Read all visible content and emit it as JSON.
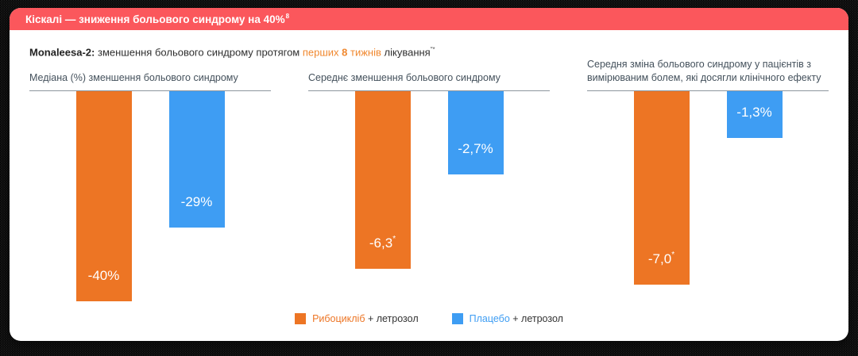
{
  "header": {
    "title": "Кіскалі — зниження больового синдрому на 40%",
    "superscript": "8"
  },
  "subtitle": {
    "prefix_bold": "Monaleesa-2:",
    "text_before": " зменшення больового синдрому протягом ",
    "highlight_pre": "перших ",
    "highlight_bold": "8",
    "highlight_post": " тижнів",
    "text_after": " лікування",
    "superscript": "″*"
  },
  "colors": {
    "header_bg": "#FB575C",
    "ribociclib_orange": "#ED7524",
    "placebo_blue": "#3E9DF3",
    "highlight_orange": "#F0882F",
    "panel_title_gray": "#44515C",
    "axis_gray": "#8C969E"
  },
  "panels": [
    {
      "title": "Медіана (%) зменшення больового синдрому",
      "bars": [
        {
          "series": "ribociclib",
          "label": "-40%",
          "sup": "",
          "height_px": "265px"
        },
        {
          "series": "placebo",
          "label": "-29%",
          "sup": "",
          "height_px": "172px"
        }
      ]
    },
    {
      "title": "Середнє зменшення больового синдрому",
      "bars": [
        {
          "series": "ribociclib",
          "label": "-6,3",
          "sup": "*",
          "height_px": "224px"
        },
        {
          "series": "placebo",
          "label": "-2,7%",
          "sup": "",
          "height_px": "105px"
        }
      ]
    },
    {
      "title": "Середня зміна больового синдрому у пацієнтів з вимірюваним болем, які досягли клінічного ефекту",
      "bars": [
        {
          "series": "ribociclib",
          "label": "-7,0",
          "sup": "*",
          "height_px": "244px"
        },
        {
          "series": "placebo",
          "label": "-1,3%",
          "sup": "",
          "height_px": "59px"
        }
      ]
    }
  ],
  "legend": [
    {
      "name": "Рибоцикліб",
      "suffix": " + летрозол",
      "color": "#ED7524"
    },
    {
      "name": "Плацебо",
      "suffix": " + летрозол",
      "color": "#3E9DF3"
    }
  ],
  "chart_data": [
    {
      "type": "bar",
      "title": "Медіана (%) зменшення больового синдрому",
      "categories": [
        "Рибоцикліб + летрозол",
        "Плацебо + летрозол"
      ],
      "values": [
        -40,
        -29
      ],
      "unit": "%",
      "ylim": [
        -45,
        0
      ],
      "grid": false,
      "legend_position": "bottom"
    },
    {
      "type": "bar",
      "title": "Середнє зменшення больового синдрому",
      "categories": [
        "Рибоцикліб + летрозол",
        "Плацебо + летрозол"
      ],
      "values": [
        -6.3,
        -2.7
      ],
      "annotations": [
        "-6,3*",
        "-2,7%"
      ],
      "ylim": [
        -7.5,
        0
      ],
      "grid": false,
      "legend_position": "bottom"
    },
    {
      "type": "bar",
      "title": "Середня зміна больового синдрому у пацієнтів з вимірюваним болем, які досягли клінічного ефекту",
      "categories": [
        "Рибоцикліб + летрозол",
        "Плацебо + летрозол"
      ],
      "values": [
        -7.0,
        -1.3
      ],
      "annotations": [
        "-7,0*",
        "-1,3%"
      ],
      "ylim": [
        -7.5,
        0
      ],
      "grid": false,
      "legend_position": "bottom"
    }
  ]
}
